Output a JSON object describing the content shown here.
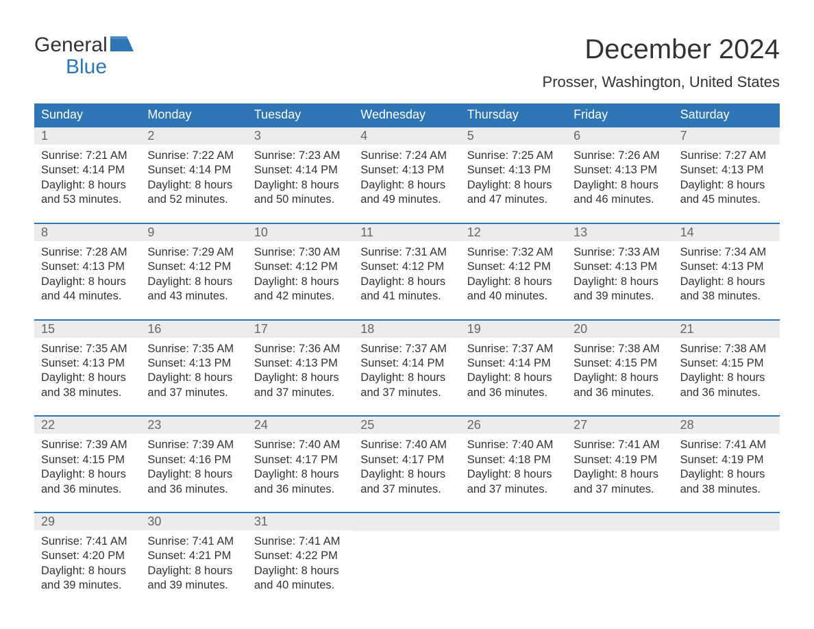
{
  "colors": {
    "header_bg": "#2e75b6",
    "header_text": "#ffffff",
    "daynum_bg": "#ececec",
    "daynum_text": "#666666",
    "body_text": "#333333",
    "rule": "#2e75b6",
    "logo_blue": "#2e75b6",
    "page_bg": "#ffffff"
  },
  "typography": {
    "month_title_fontsize": 40,
    "location_fontsize": 22,
    "dow_fontsize": 18,
    "daynum_fontsize": 18,
    "body_fontsize": 16.5,
    "logo_fontsize": 30
  },
  "layout": {
    "columns": 7,
    "rows": 5,
    "cell_body_lines": 4
  },
  "logo": {
    "line1": "General",
    "line2": "Blue"
  },
  "title": "December 2024",
  "location": "Prosser, Washington, United States",
  "dow": [
    "Sunday",
    "Monday",
    "Tuesday",
    "Wednesday",
    "Thursday",
    "Friday",
    "Saturday"
  ],
  "weeks": [
    [
      {
        "n": "1",
        "sr": "Sunrise: 7:21 AM",
        "ss": "Sunset: 4:14 PM",
        "d1": "Daylight: 8 hours",
        "d2": "and 53 minutes."
      },
      {
        "n": "2",
        "sr": "Sunrise: 7:22 AM",
        "ss": "Sunset: 4:14 PM",
        "d1": "Daylight: 8 hours",
        "d2": "and 52 minutes."
      },
      {
        "n": "3",
        "sr": "Sunrise: 7:23 AM",
        "ss": "Sunset: 4:14 PM",
        "d1": "Daylight: 8 hours",
        "d2": "and 50 minutes."
      },
      {
        "n": "4",
        "sr": "Sunrise: 7:24 AM",
        "ss": "Sunset: 4:13 PM",
        "d1": "Daylight: 8 hours",
        "d2": "and 49 minutes."
      },
      {
        "n": "5",
        "sr": "Sunrise: 7:25 AM",
        "ss": "Sunset: 4:13 PM",
        "d1": "Daylight: 8 hours",
        "d2": "and 47 minutes."
      },
      {
        "n": "6",
        "sr": "Sunrise: 7:26 AM",
        "ss": "Sunset: 4:13 PM",
        "d1": "Daylight: 8 hours",
        "d2": "and 46 minutes."
      },
      {
        "n": "7",
        "sr": "Sunrise: 7:27 AM",
        "ss": "Sunset: 4:13 PM",
        "d1": "Daylight: 8 hours",
        "d2": "and 45 minutes."
      }
    ],
    [
      {
        "n": "8",
        "sr": "Sunrise: 7:28 AM",
        "ss": "Sunset: 4:13 PM",
        "d1": "Daylight: 8 hours",
        "d2": "and 44 minutes."
      },
      {
        "n": "9",
        "sr": "Sunrise: 7:29 AM",
        "ss": "Sunset: 4:12 PM",
        "d1": "Daylight: 8 hours",
        "d2": "and 43 minutes."
      },
      {
        "n": "10",
        "sr": "Sunrise: 7:30 AM",
        "ss": "Sunset: 4:12 PM",
        "d1": "Daylight: 8 hours",
        "d2": "and 42 minutes."
      },
      {
        "n": "11",
        "sr": "Sunrise: 7:31 AM",
        "ss": "Sunset: 4:12 PM",
        "d1": "Daylight: 8 hours",
        "d2": "and 41 minutes."
      },
      {
        "n": "12",
        "sr": "Sunrise: 7:32 AM",
        "ss": "Sunset: 4:12 PM",
        "d1": "Daylight: 8 hours",
        "d2": "and 40 minutes."
      },
      {
        "n": "13",
        "sr": "Sunrise: 7:33 AM",
        "ss": "Sunset: 4:13 PM",
        "d1": "Daylight: 8 hours",
        "d2": "and 39 minutes."
      },
      {
        "n": "14",
        "sr": "Sunrise: 7:34 AM",
        "ss": "Sunset: 4:13 PM",
        "d1": "Daylight: 8 hours",
        "d2": "and 38 minutes."
      }
    ],
    [
      {
        "n": "15",
        "sr": "Sunrise: 7:35 AM",
        "ss": "Sunset: 4:13 PM",
        "d1": "Daylight: 8 hours",
        "d2": "and 38 minutes."
      },
      {
        "n": "16",
        "sr": "Sunrise: 7:35 AM",
        "ss": "Sunset: 4:13 PM",
        "d1": "Daylight: 8 hours",
        "d2": "and 37 minutes."
      },
      {
        "n": "17",
        "sr": "Sunrise: 7:36 AM",
        "ss": "Sunset: 4:13 PM",
        "d1": "Daylight: 8 hours",
        "d2": "and 37 minutes."
      },
      {
        "n": "18",
        "sr": "Sunrise: 7:37 AM",
        "ss": "Sunset: 4:14 PM",
        "d1": "Daylight: 8 hours",
        "d2": "and 37 minutes."
      },
      {
        "n": "19",
        "sr": "Sunrise: 7:37 AM",
        "ss": "Sunset: 4:14 PM",
        "d1": "Daylight: 8 hours",
        "d2": "and 36 minutes."
      },
      {
        "n": "20",
        "sr": "Sunrise: 7:38 AM",
        "ss": "Sunset: 4:15 PM",
        "d1": "Daylight: 8 hours",
        "d2": "and 36 minutes."
      },
      {
        "n": "21",
        "sr": "Sunrise: 7:38 AM",
        "ss": "Sunset: 4:15 PM",
        "d1": "Daylight: 8 hours",
        "d2": "and 36 minutes."
      }
    ],
    [
      {
        "n": "22",
        "sr": "Sunrise: 7:39 AM",
        "ss": "Sunset: 4:15 PM",
        "d1": "Daylight: 8 hours",
        "d2": "and 36 minutes."
      },
      {
        "n": "23",
        "sr": "Sunrise: 7:39 AM",
        "ss": "Sunset: 4:16 PM",
        "d1": "Daylight: 8 hours",
        "d2": "and 36 minutes."
      },
      {
        "n": "24",
        "sr": "Sunrise: 7:40 AM",
        "ss": "Sunset: 4:17 PM",
        "d1": "Daylight: 8 hours",
        "d2": "and 36 minutes."
      },
      {
        "n": "25",
        "sr": "Sunrise: 7:40 AM",
        "ss": "Sunset: 4:17 PM",
        "d1": "Daylight: 8 hours",
        "d2": "and 37 minutes."
      },
      {
        "n": "26",
        "sr": "Sunrise: 7:40 AM",
        "ss": "Sunset: 4:18 PM",
        "d1": "Daylight: 8 hours",
        "d2": "and 37 minutes."
      },
      {
        "n": "27",
        "sr": "Sunrise: 7:41 AM",
        "ss": "Sunset: 4:19 PM",
        "d1": "Daylight: 8 hours",
        "d2": "and 37 minutes."
      },
      {
        "n": "28",
        "sr": "Sunrise: 7:41 AM",
        "ss": "Sunset: 4:19 PM",
        "d1": "Daylight: 8 hours",
        "d2": "and 38 minutes."
      }
    ],
    [
      {
        "n": "29",
        "sr": "Sunrise: 7:41 AM",
        "ss": "Sunset: 4:20 PM",
        "d1": "Daylight: 8 hours",
        "d2": "and 39 minutes."
      },
      {
        "n": "30",
        "sr": "Sunrise: 7:41 AM",
        "ss": "Sunset: 4:21 PM",
        "d1": "Daylight: 8 hours",
        "d2": "and 39 minutes."
      },
      {
        "n": "31",
        "sr": "Sunrise: 7:41 AM",
        "ss": "Sunset: 4:22 PM",
        "d1": "Daylight: 8 hours",
        "d2": "and 40 minutes."
      },
      null,
      null,
      null,
      null
    ]
  ]
}
